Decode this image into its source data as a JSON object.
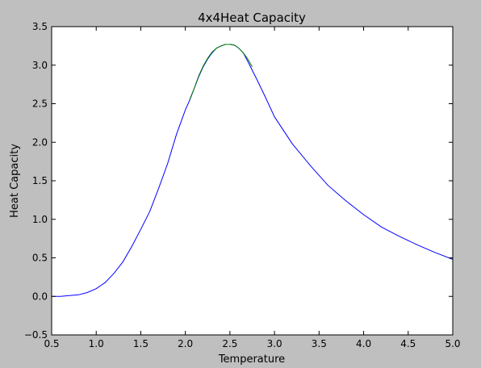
{
  "chart_data": {
    "type": "line",
    "title": "4x4Heat Capacity",
    "xlabel": "Temperature",
    "ylabel": "Heat Capacity",
    "xlim": [
      0.5,
      5.0
    ],
    "ylim": [
      -0.5,
      3.5
    ],
    "xticks": [
      0.5,
      1.0,
      1.5,
      2.0,
      2.5,
      3.0,
      3.5,
      4.0,
      4.5,
      5.0
    ],
    "xtick_labels": [
      "0.5",
      "1.0",
      "1.5",
      "2.0",
      "2.5",
      "3.0",
      "3.5",
      "4.0",
      "4.5",
      "5.0"
    ],
    "yticks": [
      -0.5,
      0.0,
      0.5,
      1.0,
      1.5,
      2.0,
      2.5,
      3.0,
      3.5
    ],
    "ytick_labels": [
      "−0.5",
      "0.0",
      "0.5",
      "1.0",
      "1.5",
      "2.0",
      "2.5",
      "3.0",
      "3.5"
    ],
    "grid": false,
    "legend": "none",
    "series": [
      {
        "color": "#0000ff",
        "x": [
          0.5,
          0.6,
          0.7,
          0.8,
          0.9,
          1.0,
          1.1,
          1.2,
          1.3,
          1.4,
          1.5,
          1.6,
          1.7,
          1.8,
          1.9,
          2.0,
          2.05,
          2.1,
          2.15,
          2.2,
          2.25,
          2.3,
          2.35,
          2.4,
          2.45,
          2.5,
          2.55,
          2.6,
          2.65,
          2.7,
          2.8,
          2.9,
          3.0,
          3.2,
          3.4,
          3.6,
          3.8,
          4.0,
          4.2,
          4.4,
          4.6,
          4.8,
          5.0
        ],
        "y": [
          0.0,
          0.0,
          0.01,
          0.02,
          0.05,
          0.1,
          0.18,
          0.3,
          0.45,
          0.65,
          0.87,
          1.1,
          1.4,
          1.72,
          2.1,
          2.42,
          2.55,
          2.7,
          2.85,
          2.98,
          3.08,
          3.16,
          3.22,
          3.25,
          3.27,
          3.27,
          3.26,
          3.22,
          3.16,
          3.05,
          2.82,
          2.58,
          2.33,
          1.98,
          1.7,
          1.44,
          1.24,
          1.06,
          0.9,
          0.78,
          0.67,
          0.57,
          0.48
        ]
      },
      {
        "color": "#007f00",
        "x": [
          2.05,
          2.1,
          2.15,
          2.2,
          2.25,
          2.3,
          2.35,
          2.4,
          2.45,
          2.5,
          2.55,
          2.6,
          2.65,
          2.7,
          2.75
        ],
        "y": [
          2.56,
          2.7,
          2.86,
          2.99,
          3.09,
          3.17,
          3.22,
          3.25,
          3.27,
          3.27,
          3.26,
          3.22,
          3.16,
          3.08,
          2.98
        ]
      }
    ]
  }
}
